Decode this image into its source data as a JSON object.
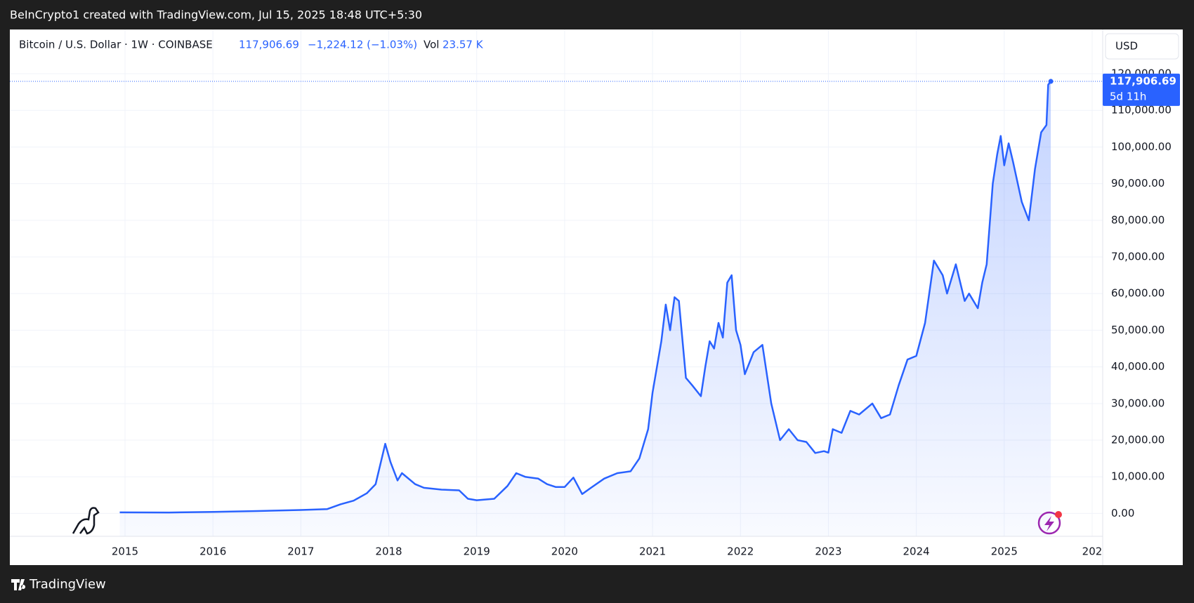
{
  "header": {
    "text": "BeInCrypto1 created with TradingView.com, Jul 15, 2025 18:48 UTC+5:30"
  },
  "footer": {
    "brand": "TradingView"
  },
  "chart_data": {
    "type": "area",
    "title": "Bitcoin / U.S. Dollar · 1W · COINBASE",
    "last_price": {
      "value": 117906.69,
      "label": "117,906.69"
    },
    "change": "−1,224.12 (−1.03%)",
    "volume_label": "Vol",
    "volume": "23.57 K",
    "currency": "USD",
    "countdown": "5d 11h",
    "color": "#2962ff",
    "grid": true,
    "x": [
      2014.94,
      2015.5,
      2016.0,
      2016.5,
      2017.0,
      2017.3,
      2017.45,
      2017.6,
      2017.75,
      2017.85,
      2017.96,
      2018.02,
      2018.1,
      2018.15,
      2018.3,
      2018.4,
      2018.6,
      2018.8,
      2018.9,
      2019.0,
      2019.2,
      2019.35,
      2019.45,
      2019.55,
      2019.7,
      2019.8,
      2019.9,
      2020.0,
      2020.1,
      2020.2,
      2020.3,
      2020.45,
      2020.6,
      2020.75,
      2020.85,
      2020.95,
      2021.0,
      2021.1,
      2021.15,
      2021.2,
      2021.25,
      2021.3,
      2021.38,
      2021.45,
      2021.55,
      2021.6,
      2021.65,
      2021.7,
      2021.75,
      2021.8,
      2021.85,
      2021.9,
      2021.95,
      2022.0,
      2022.05,
      2022.15,
      2022.25,
      2022.35,
      2022.45,
      2022.55,
      2022.65,
      2022.75,
      2022.85,
      2022.95,
      2023.0,
      2023.05,
      2023.15,
      2023.25,
      2023.35,
      2023.5,
      2023.6,
      2023.7,
      2023.8,
      2023.9,
      2024.0,
      2024.1,
      2024.2,
      2024.3,
      2024.35,
      2024.45,
      2024.55,
      2024.6,
      2024.7,
      2024.75,
      2024.8,
      2024.87,
      2024.92,
      2024.96,
      2025.0,
      2025.05,
      2025.1,
      2025.2,
      2025.28,
      2025.35,
      2025.42,
      2025.48,
      2025.5,
      2025.53
    ],
    "values": [
      300,
      250,
      400,
      650,
      950,
      1200,
      2500,
      3500,
      5500,
      8000,
      19000,
      14000,
      9000,
      11000,
      8000,
      7000,
      6500,
      6300,
      4000,
      3600,
      4000,
      7500,
      11000,
      10000,
      9500,
      8000,
      7200,
      7200,
      9800,
      5300,
      7000,
      9500,
      11000,
      11500,
      15000,
      23000,
      33000,
      47000,
      57000,
      50000,
      59000,
      58000,
      37000,
      35000,
      32000,
      40000,
      47000,
      45000,
      52000,
      48000,
      63000,
      65000,
      50000,
      46000,
      38000,
      44000,
      46000,
      30000,
      20000,
      23000,
      20000,
      19500,
      16500,
      17000,
      16600,
      23000,
      22000,
      28000,
      27000,
      30000,
      26000,
      27000,
      35000,
      42000,
      43000,
      52000,
      69000,
      65000,
      60000,
      68000,
      58000,
      60000,
      56000,
      63000,
      68000,
      90000,
      98000,
      103000,
      95000,
      101000,
      96000,
      85000,
      80000,
      94000,
      104000,
      106000,
      117000,
      117906.69
    ],
    "xlim": [
      2013.69,
      2026.12
    ],
    "xticks": [
      2015,
      2016,
      2017,
      2018,
      2019,
      2020,
      2021,
      2022,
      2023,
      2024,
      2025,
      {
        "value": 2026,
        "label": "202"
      }
    ],
    "ylim": [
      -6240,
      132070
    ],
    "yticks": [
      {
        "value": 0,
        "label": "0.00"
      },
      {
        "value": 10000,
        "label": "10,000.00"
      },
      {
        "value": 20000,
        "label": "20,000.00"
      },
      {
        "value": 30000,
        "label": "30,000.00"
      },
      {
        "value": 40000,
        "label": "40,000.00"
      },
      {
        "value": 50000,
        "label": "50,000.00"
      },
      {
        "value": 60000,
        "label": "60,000.00"
      },
      {
        "value": 70000,
        "label": "70,000.00"
      },
      {
        "value": 80000,
        "label": "80,000.00"
      },
      {
        "value": 90000,
        "label": "90,000.00"
      },
      {
        "value": 100000,
        "label": "100,000.00"
      },
      {
        "value": 110000,
        "label": "110,000.00"
      },
      {
        "value": 120000,
        "label": "120,000.00"
      }
    ]
  }
}
